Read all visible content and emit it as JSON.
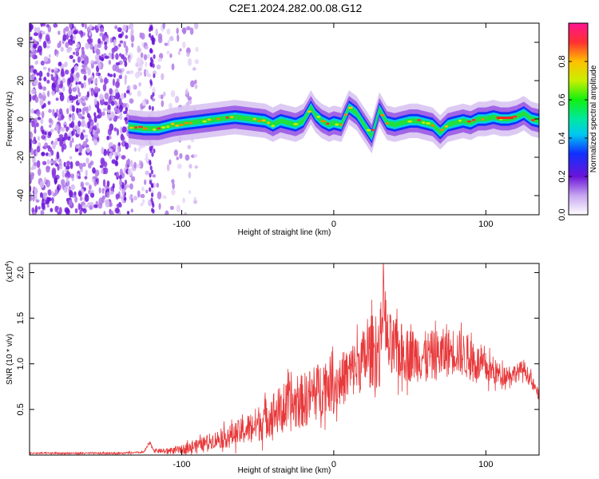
{
  "chart_data": [
    {
      "type": "heatmap",
      "title": "C2E1.2024.282.00.08.G12",
      "xlabel": "Height of straight line (km)",
      "ylabel": "Frequency (Hz)",
      "xlim": [
        -200,
        135
      ],
      "ylim": [
        -50,
        50
      ],
      "xticks": [
        -100,
        0,
        100
      ],
      "yticks": [
        -40,
        -20,
        0,
        20,
        40
      ],
      "colorbar": {
        "label": "Normalized spectral amplitude",
        "range": [
          0,
          1
        ],
        "ticks": [
          0.0,
          0.2,
          0.4,
          0.6,
          0.8
        ],
        "tick_labels": [
          "0.0",
          "0.2",
          "0.4",
          "0.6",
          "0.8"
        ]
      },
      "noise_region_x": [
        -200,
        -100
      ],
      "ridge": {
        "x": [
          -135,
          -125,
          -115,
          -105,
          -95,
          -85,
          -75,
          -65,
          -55,
          -45,
          -40,
          -35,
          -30,
          -25,
          -20,
          -15,
          -12,
          -8,
          -3,
          0,
          5,
          10,
          15,
          20,
          25,
          30,
          35,
          40,
          45,
          50,
          55,
          60,
          65,
          70,
          75,
          80,
          85,
          90,
          95,
          100,
          105,
          110,
          115,
          120,
          125,
          130,
          135
        ],
        "freq": [
          -4,
          -5,
          -5,
          -3,
          -2,
          -1,
          0,
          1,
          0,
          -1,
          -3,
          -1,
          -2,
          -3,
          -1,
          6,
          2,
          -1,
          -3,
          -2,
          -3,
          6,
          3,
          -3,
          -9,
          5,
          -2,
          -3,
          -2,
          -1,
          -1,
          -2,
          -3,
          -7,
          -3,
          -2,
          -1,
          -2,
          0,
          0,
          1,
          0,
          0,
          1,
          3,
          0,
          -1
        ]
      }
    },
    {
      "type": "line",
      "xlabel": "Height of straight line (km)",
      "ylabel": "SNR (10 * v/v)",
      "y_multiplier": "(x10",
      "y_multiplier_exp": "4",
      "xlim": [
        -200,
        135
      ],
      "ylim": [
        0,
        2.1
      ],
      "xticks": [
        -100,
        0,
        100
      ],
      "yticks": [
        0.5,
        1.0,
        1.5,
        2.0
      ],
      "ytick_labels": [
        "0.5",
        "1.0",
        "1.5",
        "2.0"
      ],
      "color": "#e8383a",
      "series": [
        {
          "name": "SNR",
          "x": [
            -200,
            -170,
            -140,
            -125,
            -121,
            -118,
            -110,
            -100,
            -90,
            -80,
            -70,
            -60,
            -50,
            -40,
            -30,
            -20,
            -10,
            -5,
            0,
            10,
            20,
            25,
            30,
            33,
            35,
            40,
            50,
            60,
            70,
            80,
            90,
            100,
            110,
            120,
            125,
            130,
            135
          ],
          "values": [
            0.02,
            0.02,
            0.02,
            0.03,
            0.13,
            0.05,
            0.04,
            0.06,
            0.1,
            0.16,
            0.2,
            0.26,
            0.34,
            0.46,
            0.52,
            0.6,
            0.7,
            0.8,
            0.75,
            0.9,
            1.05,
            1.15,
            1.1,
            1.8,
            1.2,
            1.15,
            1.1,
            1.08,
            1.1,
            1.15,
            1.05,
            0.95,
            0.88,
            0.9,
            0.95,
            0.8,
            0.65
          ],
          "noise_amplitude": [
            0.01,
            0.01,
            0.01,
            0.01,
            0.02,
            0.02,
            0.03,
            0.05,
            0.07,
            0.09,
            0.12,
            0.15,
            0.2,
            0.25,
            0.28,
            0.3,
            0.32,
            0.32,
            0.3,
            0.3,
            0.35,
            0.4,
            0.4,
            0.3,
            0.4,
            0.35,
            0.3,
            0.28,
            0.28,
            0.26,
            0.24,
            0.18,
            0.12,
            0.1,
            0.1,
            0.08,
            0.06
          ]
        }
      ]
    }
  ]
}
